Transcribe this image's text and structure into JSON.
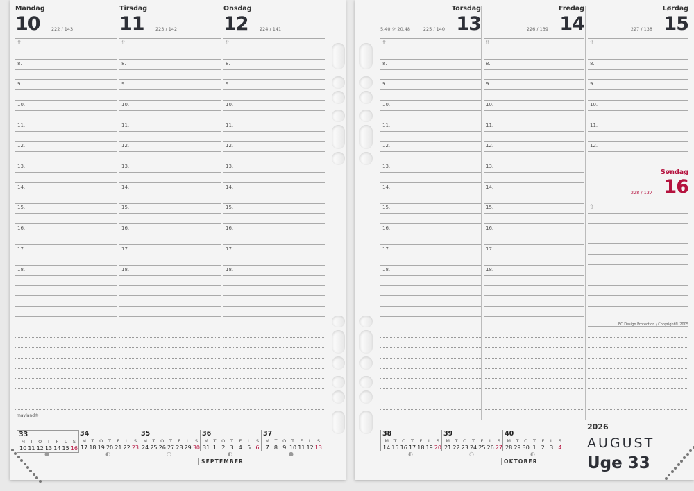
{
  "days": [
    {
      "name": "Mandag",
      "num": "10",
      "count": "222 / 143"
    },
    {
      "name": "Tirsdag",
      "num": "11",
      "count": "223 / 142"
    },
    {
      "name": "Onsdag",
      "num": "12",
      "count": "224 / 141"
    },
    {
      "name": "Torsdag",
      "num": "13",
      "count": "225 / 140",
      "sun": "5.40 ☼ 20.48"
    },
    {
      "name": "Fredag",
      "num": "14",
      "count": "226 / 139"
    },
    {
      "name": "Lørdag",
      "num": "15",
      "count": "227 / 138"
    },
    {
      "name": "Søndag",
      "num": "16",
      "count": "228 / 137"
    }
  ],
  "hours": [
    "8.",
    "9.",
    "10.",
    "11.",
    "12.",
    "13.",
    "14.",
    "15.",
    "16.",
    "17.",
    "18."
  ],
  "brand": "mayland®",
  "copyright": "EC Design Protection / Copyright® 2005",
  "mini_calendar": {
    "headers": [
      "M",
      "T",
      "O",
      "T",
      "F",
      "L",
      "S"
    ],
    "weeks": [
      {
        "wk": "33",
        "days": [
          "10",
          "11",
          "12",
          "13",
          "14",
          "15",
          "16"
        ],
        "current": true,
        "moon": "●"
      },
      {
        "wk": "34",
        "days": [
          "17",
          "18",
          "19",
          "20",
          "21",
          "22",
          "23"
        ],
        "moon": "◐"
      },
      {
        "wk": "35",
        "days": [
          "24",
          "25",
          "26",
          "27",
          "28",
          "29",
          "30"
        ],
        "moon": "○"
      },
      {
        "wk": "36",
        "days": [
          "31",
          "1",
          "2",
          "3",
          "4",
          "5",
          "6"
        ],
        "moon": "◐",
        "month": "SEPTEMBER"
      },
      {
        "wk": "37",
        "days": [
          "7",
          "8",
          "9",
          "10",
          "11",
          "12",
          "13"
        ],
        "moon": "●"
      },
      {
        "wk": "38",
        "days": [
          "14",
          "15",
          "16",
          "17",
          "18",
          "19",
          "20"
        ],
        "moon": "◐"
      },
      {
        "wk": "39",
        "days": [
          "21",
          "22",
          "23",
          "24",
          "25",
          "26",
          "27"
        ],
        "moon": "○"
      },
      {
        "wk": "40",
        "days": [
          "28",
          "29",
          "30",
          "1",
          "2",
          "3",
          "4"
        ],
        "moon": "◐",
        "month": "OKTOBER"
      }
    ]
  },
  "year": "2026",
  "month": "AUGUST",
  "week_label": "Uge 33",
  "colors": {
    "sunday": "#b5123e",
    "text": "#2d2f36"
  }
}
